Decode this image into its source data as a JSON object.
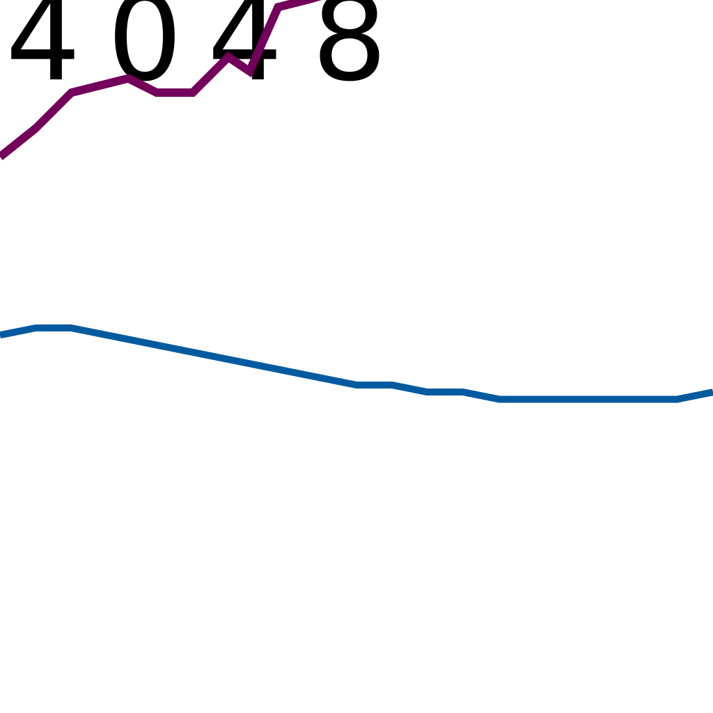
{
  "chart_data": {
    "type": "line",
    "tick_labels": [
      "4",
      "0",
      "4",
      "8"
    ],
    "grid": false,
    "legend": "none",
    "colors": {
      "text": "#000000",
      "series_upper": "#73005a",
      "series_lower": "#005aa0",
      "background": "#ffffff"
    },
    "series": [
      {
        "color_key": "series_upper",
        "x": [
          0.0,
          0.5,
          1.0,
          1.8,
          2.2,
          2.7,
          3.2,
          3.5,
          3.9,
          4.3,
          5.0,
          5.4
        ],
        "y": [
          7.8,
          8.2,
          8.7,
          8.9,
          8.7,
          8.7,
          9.2,
          9.0,
          9.9,
          10.0,
          10.2,
          10.2
        ]
      },
      {
        "color_key": "series_lower",
        "x": [
          0.0,
          0.5,
          1.0,
          1.5,
          2.0,
          2.5,
          3.0,
          3.5,
          4.0,
          4.5,
          5.0,
          5.5,
          6.0,
          6.5,
          7.0,
          7.5,
          8.0,
          8.5,
          9.0,
          9.5,
          10.0
        ],
        "y": [
          5.3,
          5.4,
          5.4,
          5.3,
          5.2,
          5.1,
          5.0,
          4.9,
          4.8,
          4.7,
          4.6,
          4.6,
          4.5,
          4.5,
          4.4,
          4.4,
          4.4,
          4.4,
          4.4,
          4.4,
          4.5
        ]
      }
    ],
    "xlim": [
      0,
      10
    ],
    "ylim": [
      0,
      10
    ]
  }
}
